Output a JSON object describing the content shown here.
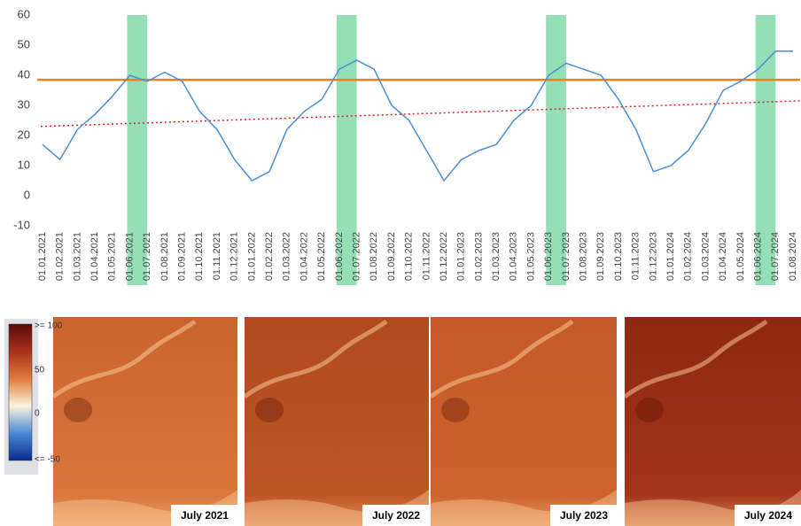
{
  "chart_data": {
    "type": "line",
    "categories": [
      "01.01.2021",
      "01.02.2021",
      "01.03.2021",
      "01.04.2021",
      "01.05.2021",
      "01.06.2021",
      "01.07.2021",
      "01.08.2021",
      "01.09.2021",
      "01.10.2021",
      "01.11.2021",
      "01.12.2021",
      "01.01.2022",
      "01.02.2022",
      "01.03.2022",
      "01.04.2022",
      "01.05.2022",
      "01.06.2022",
      "01.07.2022",
      "01.08.2022",
      "01.09.2022",
      "01.10.2022",
      "01.11.2022",
      "01.12.2022",
      "01.01.2023",
      "01.02.2023",
      "01.03.2023",
      "01.04.2023",
      "01.05.2023",
      "01.06.2023",
      "01.07.2023",
      "01.08.2023",
      "01.09.2023",
      "01.10.2023",
      "01.11.2023",
      "01.12.2023",
      "01.01.2024",
      "01.02.2024",
      "01.03.2024",
      "01.04.2024",
      "01.05.2024",
      "01.06.2024",
      "01.07.2024",
      "01.08.2024"
    ],
    "values": [
      17,
      12,
      22,
      27,
      33,
      40,
      38,
      41,
      38,
      28,
      22,
      12,
      5,
      8,
      22,
      28,
      32,
      42,
      45,
      42,
      30,
      25,
      15,
      5,
      12,
      15,
      17,
      25,
      30,
      40,
      44,
      42,
      40,
      32,
      22,
      8,
      10,
      15,
      24,
      35,
      38,
      42,
      48,
      48
    ],
    "color": "#4a8fd4",
    "ylim": [
      -10,
      60
    ],
    "yticks": [
      -10,
      0,
      10,
      20,
      30,
      40,
      50,
      60
    ],
    "grid": false,
    "reference_line": {
      "value": 38.5,
      "color": "#f0801e"
    },
    "trend_line": {
      "start": 23,
      "end": 31.5,
      "color": "#e02020"
    },
    "highlights": [
      {
        "from": "01.06.2021",
        "to": "01.07.2021"
      },
      {
        "from": "01.06.2022",
        "to": "01.07.2022"
      },
      {
        "from": "01.06.2023",
        "to": "01.07.2023"
      },
      {
        "from": "01.06.2024",
        "to": "01.07.2024"
      }
    ],
    "highlight_color": "#3cc47a"
  },
  "colorbar": {
    "labels": [
      ">= 100",
      "50",
      "0",
      "<= -50"
    ]
  },
  "maps": [
    {
      "caption": "July 2021"
    },
    {
      "caption": "July 2022"
    },
    {
      "caption": "July 2023"
    },
    {
      "caption": "July 2024"
    }
  ]
}
